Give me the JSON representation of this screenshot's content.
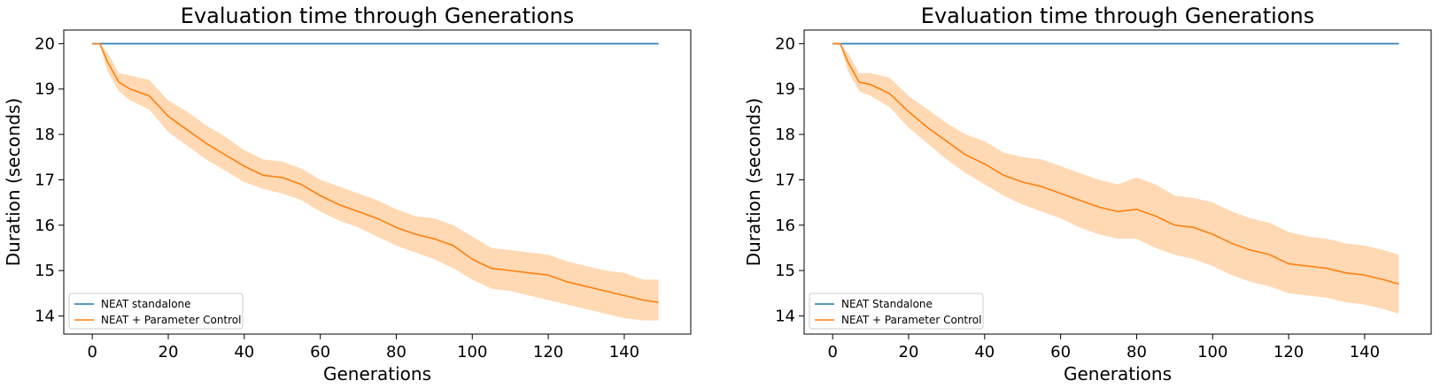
{
  "chart_data": [
    {
      "type": "line",
      "title": "Evaluation time through Generations",
      "xlabel": "Generations",
      "ylabel": "Duration (seconds)",
      "xlim": [
        -7.5,
        157.5
      ],
      "ylim": [
        13.6,
        20.3
      ],
      "xticks": [
        0,
        20,
        40,
        60,
        80,
        100,
        120,
        140
      ],
      "yticks": [
        14,
        15,
        16,
        17,
        18,
        19,
        20
      ],
      "grid": false,
      "legend_position": "lower-left",
      "series": [
        {
          "name": "NEAT standalone",
          "color": "#1f77b4",
          "x": [
            0,
            149
          ],
          "y": [
            20,
            20
          ]
        },
        {
          "name": "NEAT + Parameter Control",
          "color": "#ff7f0e",
          "band_color": "#ffcc99",
          "x": [
            0,
            2,
            4,
            7,
            10,
            15,
            20,
            25,
            30,
            35,
            40,
            45,
            50,
            55,
            60,
            65,
            70,
            75,
            80,
            85,
            90,
            95,
            100,
            105,
            110,
            115,
            120,
            125,
            130,
            135,
            140,
            145,
            149
          ],
          "y": [
            20,
            20,
            19.6,
            19.15,
            19.0,
            18.85,
            18.4,
            18.1,
            17.8,
            17.55,
            17.3,
            17.1,
            17.05,
            16.9,
            16.65,
            16.45,
            16.3,
            16.15,
            15.95,
            15.8,
            15.7,
            15.55,
            15.25,
            15.05,
            15.0,
            14.95,
            14.9,
            14.75,
            14.65,
            14.55,
            14.45,
            14.35,
            14.3
          ],
          "y_lower": [
            20,
            20,
            19.4,
            18.95,
            18.75,
            18.55,
            18.05,
            17.75,
            17.45,
            17.2,
            16.95,
            16.8,
            16.7,
            16.55,
            16.3,
            16.1,
            15.95,
            15.75,
            15.55,
            15.4,
            15.25,
            15.05,
            14.8,
            14.6,
            14.55,
            14.45,
            14.35,
            14.25,
            14.15,
            14.05,
            13.95,
            13.9,
            13.9
          ],
          "y_upper": [
            20,
            20,
            19.8,
            19.35,
            19.3,
            19.2,
            18.75,
            18.5,
            18.2,
            17.95,
            17.65,
            17.45,
            17.4,
            17.25,
            17.0,
            16.85,
            16.7,
            16.55,
            16.35,
            16.2,
            16.15,
            16.0,
            15.75,
            15.5,
            15.45,
            15.4,
            15.35,
            15.2,
            15.1,
            15.0,
            14.95,
            14.8,
            14.8
          ]
        }
      ]
    },
    {
      "type": "line",
      "title": "Evaluation time through Generations",
      "xlabel": "Generations",
      "ylabel": "Duration (seconds)",
      "xlim": [
        -7.5,
        157.5
      ],
      "ylim": [
        13.6,
        20.3
      ],
      "xticks": [
        0,
        20,
        40,
        60,
        80,
        100,
        120,
        140
      ],
      "yticks": [
        14,
        15,
        16,
        17,
        18,
        19,
        20
      ],
      "grid": false,
      "legend_position": "lower-left",
      "series": [
        {
          "name": "NEAT Standalone",
          "color": "#1f77b4",
          "x": [
            0,
            149
          ],
          "y": [
            20,
            20
          ]
        },
        {
          "name": "NEAT + Parameter Control",
          "color": "#ff7f0e",
          "band_color": "#ffcc99",
          "x": [
            0,
            2,
            4,
            7,
            10,
            15,
            20,
            25,
            30,
            35,
            40,
            45,
            50,
            55,
            60,
            65,
            70,
            75,
            80,
            85,
            90,
            95,
            100,
            105,
            110,
            115,
            120,
            125,
            130,
            135,
            140,
            145,
            149
          ],
          "y": [
            20,
            20,
            19.6,
            19.15,
            19.1,
            18.9,
            18.5,
            18.15,
            17.85,
            17.55,
            17.35,
            17.1,
            16.95,
            16.85,
            16.7,
            16.55,
            16.4,
            16.3,
            16.35,
            16.2,
            16.0,
            15.95,
            15.8,
            15.6,
            15.45,
            15.35,
            15.15,
            15.1,
            15.05,
            14.95,
            14.9,
            14.8,
            14.7
          ],
          "y_lower": [
            20,
            20,
            19.4,
            18.95,
            18.85,
            18.6,
            18.15,
            17.8,
            17.45,
            17.15,
            16.9,
            16.65,
            16.45,
            16.3,
            16.15,
            15.95,
            15.8,
            15.7,
            15.7,
            15.5,
            15.35,
            15.25,
            15.1,
            14.9,
            14.75,
            14.65,
            14.5,
            14.45,
            14.4,
            14.3,
            14.25,
            14.15,
            14.05
          ],
          "y_upper": [
            20,
            20,
            19.8,
            19.35,
            19.35,
            19.25,
            18.85,
            18.55,
            18.25,
            18.0,
            17.85,
            17.6,
            17.5,
            17.45,
            17.3,
            17.15,
            17.0,
            16.9,
            17.05,
            16.9,
            16.65,
            16.6,
            16.5,
            16.3,
            16.15,
            16.05,
            15.85,
            15.75,
            15.7,
            15.6,
            15.55,
            15.45,
            15.35
          ]
        }
      ]
    }
  ]
}
